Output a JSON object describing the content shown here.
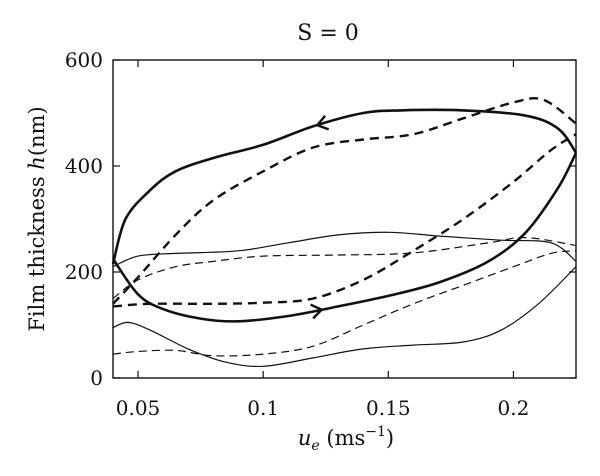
{
  "chart_data": {
    "type": "line",
    "title": "S = 0",
    "xlabel": {
      "symbol": "u",
      "subscript": "e",
      "unit_prefix": " (ms",
      "unit_exponent": "−1",
      "unit_suffix": ")"
    },
    "ylabel": {
      "text": "Film thickness ",
      "symbol": "h",
      "unit": "(nm)"
    },
    "xlim": [
      0.04,
      0.225
    ],
    "ylim": [
      0,
      600
    ],
    "x_ticks": [
      0.05,
      0.1,
      0.15,
      0.2
    ],
    "x_tick_labels": [
      "0.05",
      "0.1",
      "0.15",
      "0.2"
    ],
    "y_ticks": [
      0,
      200,
      400,
      600
    ],
    "y_tick_labels": [
      "0",
      "200",
      "400",
      "600"
    ],
    "grid": false,
    "legend": "none",
    "series": [
      {
        "style": "solid-thick",
        "points": [
          [
            0.04,
            215
          ],
          [
            0.045,
            300
          ],
          [
            0.055,
            355
          ],
          [
            0.065,
            390
          ],
          [
            0.08,
            415
          ],
          [
            0.1,
            440
          ],
          [
            0.12,
            475
          ],
          [
            0.14,
            500
          ],
          [
            0.155,
            505
          ],
          [
            0.18,
            505
          ],
          [
            0.205,
            495
          ],
          [
            0.218,
            470
          ],
          [
            0.225,
            425
          ]
        ],
        "arrow_at": 0.122,
        "arrow_direction": "left"
      },
      {
        "style": "solid-thick",
        "points": [
          [
            0.04,
            225
          ],
          [
            0.05,
            158
          ],
          [
            0.06,
            130
          ],
          [
            0.075,
            112
          ],
          [
            0.09,
            107
          ],
          [
            0.11,
            117
          ],
          [
            0.13,
            135
          ],
          [
            0.15,
            155
          ],
          [
            0.17,
            180
          ],
          [
            0.19,
            220
          ],
          [
            0.205,
            275
          ],
          [
            0.218,
            360
          ],
          [
            0.225,
            425
          ]
        ],
        "arrow_at": 0.123,
        "arrow_direction": "right"
      },
      {
        "style": "dashed-thick",
        "points": [
          [
            0.04,
            140
          ],
          [
            0.05,
            190
          ],
          [
            0.065,
            270
          ],
          [
            0.08,
            335
          ],
          [
            0.1,
            390
          ],
          [
            0.12,
            435
          ],
          [
            0.14,
            450
          ],
          [
            0.16,
            460
          ],
          [
            0.18,
            490
          ],
          [
            0.2,
            520
          ],
          [
            0.212,
            525
          ],
          [
            0.225,
            480
          ]
        ]
      },
      {
        "style": "dashed-thick",
        "points": [
          [
            0.04,
            135
          ],
          [
            0.055,
            140
          ],
          [
            0.08,
            140
          ],
          [
            0.1,
            142
          ],
          [
            0.12,
            150
          ],
          [
            0.14,
            185
          ],
          [
            0.16,
            240
          ],
          [
            0.18,
            300
          ],
          [
            0.2,
            370
          ],
          [
            0.215,
            430
          ],
          [
            0.225,
            460
          ]
        ]
      },
      {
        "style": "solid-thin",
        "points": [
          [
            0.04,
            210
          ],
          [
            0.05,
            230
          ],
          [
            0.065,
            235
          ],
          [
            0.09,
            240
          ],
          [
            0.11,
            255
          ],
          [
            0.13,
            270
          ],
          [
            0.15,
            275
          ],
          [
            0.17,
            268
          ],
          [
            0.195,
            260
          ],
          [
            0.215,
            255
          ],
          [
            0.225,
            220
          ]
        ]
      },
      {
        "style": "solid-thin",
        "points": [
          [
            0.04,
            95
          ],
          [
            0.046,
            105
          ],
          [
            0.055,
            90
          ],
          [
            0.07,
            55
          ],
          [
            0.085,
            30
          ],
          [
            0.1,
            22
          ],
          [
            0.12,
            38
          ],
          [
            0.14,
            55
          ],
          [
            0.16,
            62
          ],
          [
            0.18,
            68
          ],
          [
            0.195,
            90
          ],
          [
            0.21,
            140
          ],
          [
            0.225,
            210
          ]
        ]
      },
      {
        "style": "dashed-thin",
        "points": [
          [
            0.04,
            150
          ],
          [
            0.05,
            185
          ],
          [
            0.065,
            210
          ],
          [
            0.08,
            220
          ],
          [
            0.1,
            230
          ],
          [
            0.13,
            232
          ],
          [
            0.16,
            236
          ],
          [
            0.19,
            255
          ],
          [
            0.205,
            265
          ],
          [
            0.225,
            250
          ]
        ]
      },
      {
        "style": "dashed-thin",
        "points": [
          [
            0.04,
            45
          ],
          [
            0.05,
            50
          ],
          [
            0.065,
            52
          ],
          [
            0.08,
            42
          ],
          [
            0.1,
            45
          ],
          [
            0.12,
            60
          ],
          [
            0.14,
            100
          ],
          [
            0.16,
            140
          ],
          [
            0.18,
            175
          ],
          [
            0.2,
            210
          ],
          [
            0.215,
            235
          ],
          [
            0.225,
            240
          ]
        ]
      }
    ]
  }
}
